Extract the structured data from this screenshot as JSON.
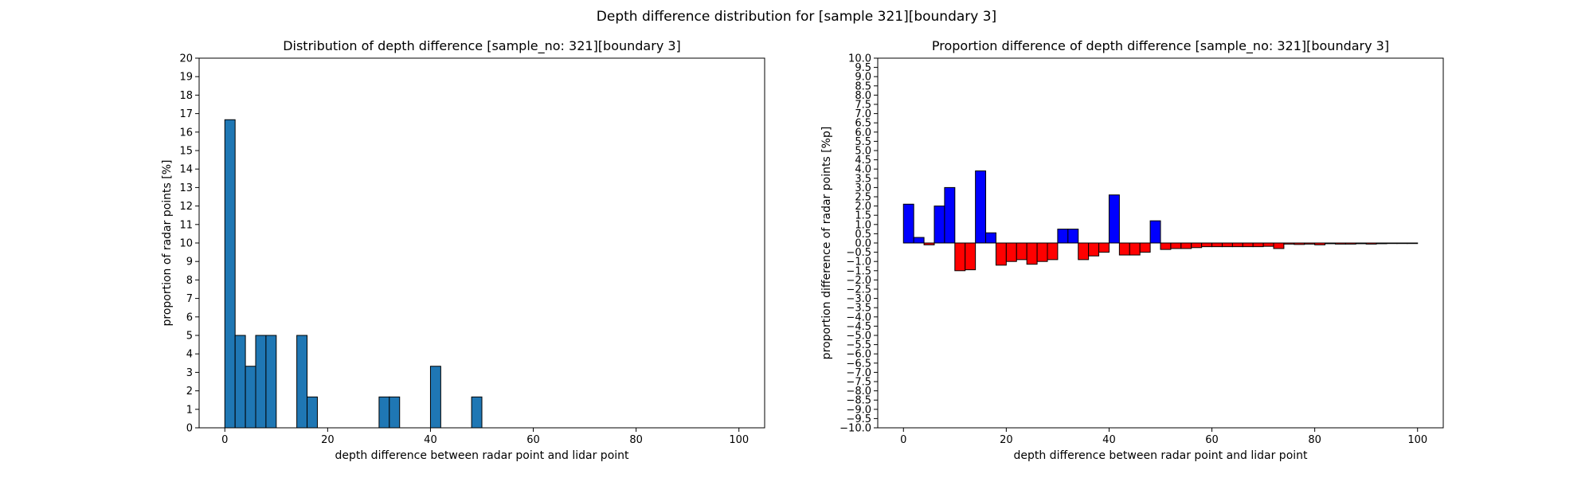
{
  "figure": {
    "suptitle": "Depth difference distribution for [sample 321][boundary 3]"
  },
  "chart_data": [
    {
      "type": "bar",
      "title": "Distribution of depth difference [sample_no: 321][boundary 3]",
      "xlabel": "depth difference between radar point and lidar point",
      "ylabel": "proportion of radar points [%]",
      "xlim": [
        -5,
        105
      ],
      "ylim": [
        0,
        20
      ],
      "xticks": [
        0,
        20,
        40,
        60,
        80,
        100
      ],
      "yticks": [
        0,
        1,
        2,
        3,
        4,
        5,
        6,
        7,
        8,
        9,
        10,
        11,
        12,
        13,
        14,
        15,
        16,
        17,
        18,
        19,
        20
      ],
      "bin_width": 2,
      "bin_starts": [
        0,
        2,
        4,
        6,
        8,
        14,
        16,
        30,
        32,
        40,
        48
      ],
      "values": [
        16.67,
        5.0,
        3.33,
        5.0,
        5.0,
        5.0,
        1.67,
        1.67,
        1.67,
        3.33,
        1.67
      ],
      "color": "#1f77b4",
      "edge_color": "#000000",
      "grid": false,
      "legend": "none"
    },
    {
      "type": "bar",
      "title": "Proportion difference of depth difference [sample_no: 321][boundary 3]",
      "xlabel": "depth difference between radar point and lidar point",
      "ylabel": "proportion difference of radar points [%p]",
      "xlim": [
        -5,
        105
      ],
      "ylim": [
        -10,
        10
      ],
      "xticks": [
        0,
        20,
        40,
        60,
        80,
        100
      ],
      "yticks": [
        -10.0,
        -9.5,
        -9.0,
        -8.5,
        -8.0,
        -7.5,
        -7.0,
        -6.5,
        -6.0,
        -5.5,
        -5.0,
        -4.5,
        -4.0,
        -3.5,
        -3.0,
        -2.5,
        -2.0,
        -1.5,
        -1.0,
        -0.5,
        0.0,
        0.5,
        1.0,
        1.5,
        2.0,
        2.5,
        3.0,
        3.5,
        4.0,
        4.5,
        5.0,
        5.5,
        6.0,
        6.5,
        7.0,
        7.5,
        8.0,
        8.5,
        9.0,
        9.5,
        10.0
      ],
      "bin_width": 2,
      "bin_start": 0,
      "values": [
        2.1,
        0.3,
        -0.1,
        2.0,
        3.0,
        -1.5,
        -1.45,
        3.9,
        0.55,
        -1.2,
        -1.0,
        -0.9,
        -1.15,
        -1.0,
        -0.9,
        0.75,
        0.75,
        -0.9,
        -0.7,
        -0.5,
        2.6,
        -0.65,
        -0.65,
        -0.5,
        1.2,
        -0.35,
        -0.3,
        -0.3,
        -0.25,
        -0.2,
        -0.2,
        -0.2,
        -0.2,
        -0.2,
        -0.2,
        -0.18,
        -0.3,
        -0.06,
        -0.08,
        -0.06,
        -0.1,
        -0.04,
        -0.06,
        -0.06,
        -0.04,
        -0.06,
        -0.04,
        -0.03,
        -0.03,
        -0.03
      ],
      "positive_color": "#0000ff",
      "negative_color": "#ff0000",
      "edge_color": "#000000",
      "grid": false,
      "legend": "none"
    }
  ]
}
